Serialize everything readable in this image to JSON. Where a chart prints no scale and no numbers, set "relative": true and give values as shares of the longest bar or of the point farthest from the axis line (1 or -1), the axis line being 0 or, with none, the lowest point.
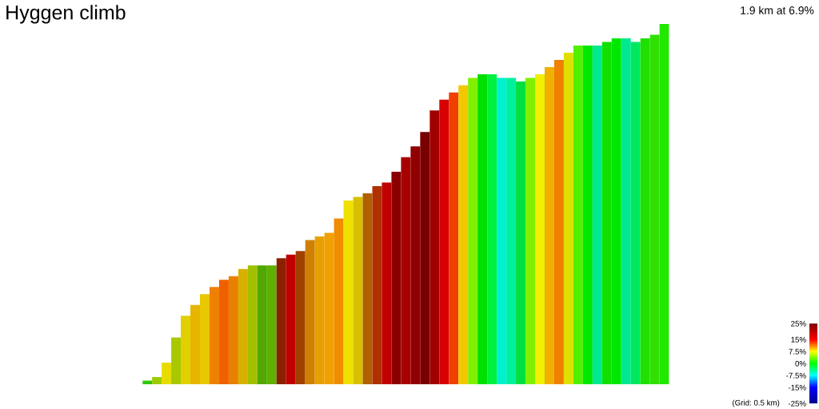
{
  "chart_data": {
    "type": "bar",
    "title": "Hyggen climb",
    "subtitle": "1.9 km at 6.9%",
    "annotations": [
      "(Grid: 0.5 km)"
    ],
    "relative": true,
    "categories": [
      null,
      null,
      null,
      null,
      null,
      null,
      null,
      null,
      null,
      null,
      null,
      null,
      null,
      null,
      null,
      null,
      null,
      null,
      null,
      null,
      null,
      null,
      null,
      null,
      null,
      null,
      null,
      null,
      null,
      null,
      null,
      null,
      null,
      null,
      null,
      null,
      null,
      null,
      null,
      null,
      null,
      null,
      null,
      null,
      null,
      null,
      null,
      null,
      null,
      null,
      null,
      null,
      null,
      null,
      null
    ],
    "values": [
      0.01,
      0.02,
      0.06,
      0.13,
      0.19,
      0.22,
      0.25,
      0.27,
      0.29,
      0.3,
      0.32,
      0.33,
      0.33,
      0.33,
      0.35,
      0.36,
      0.37,
      0.4,
      0.41,
      0.42,
      0.46,
      0.51,
      0.52,
      0.53,
      0.55,
      0.56,
      0.59,
      0.63,
      0.66,
      0.7,
      0.76,
      0.79,
      0.81,
      0.83,
      0.85,
      0.86,
      0.86,
      0.85,
      0.85,
      0.84,
      0.85,
      0.86,
      0.88,
      0.9,
      0.92,
      0.94,
      0.94,
      0.94,
      0.95,
      0.96,
      0.96,
      0.95,
      0.96,
      0.97,
      1.0
    ],
    "colors": [
      "#2ec800",
      "#9ccc00",
      "#e6dc00",
      "#a8c800",
      "#e0d000",
      "#e8b400",
      "#e8c800",
      "#f08000",
      "#f06000",
      "#e88000",
      "#d8b000",
      "#a0c000",
      "#50a800",
      "#60b000",
      "#8b2000",
      "#c00000",
      "#a04000",
      "#d08000",
      "#e8a000",
      "#f0a000",
      "#f08c00",
      "#f0e000",
      "#d8c000",
      "#b06000",
      "#b03000",
      "#c00000",
      "#8b0000",
      "#a80000",
      "#900000",
      "#780000",
      "#a00000",
      "#d80000",
      "#f04000",
      "#f0c800",
      "#80f000",
      "#00e000",
      "#00f040",
      "#00f0d0",
      "#00f0a0",
      "#00e040",
      "#80f000",
      "#f0f000",
      "#f0b000",
      "#f08000",
      "#e0e000",
      "#50f000",
      "#00e800",
      "#00e890",
      "#10e000",
      "#00e800",
      "#00e890",
      "#00e860",
      "#20e000",
      "#30e000",
      "#20e800"
    ],
    "clim": [
      -25,
      25
    ],
    "cticks": [
      {
        "value": 25,
        "label": "25%"
      },
      {
        "value": 15,
        "label": "15%"
      },
      {
        "value": 7.5,
        "label": "7.5%"
      },
      {
        "value": 0,
        "label": "0%"
      },
      {
        "value": -7.5,
        "label": "-7.5%"
      },
      {
        "value": -15,
        "label": "-15%"
      },
      {
        "value": -25,
        "label": "-25%"
      }
    ]
  }
}
